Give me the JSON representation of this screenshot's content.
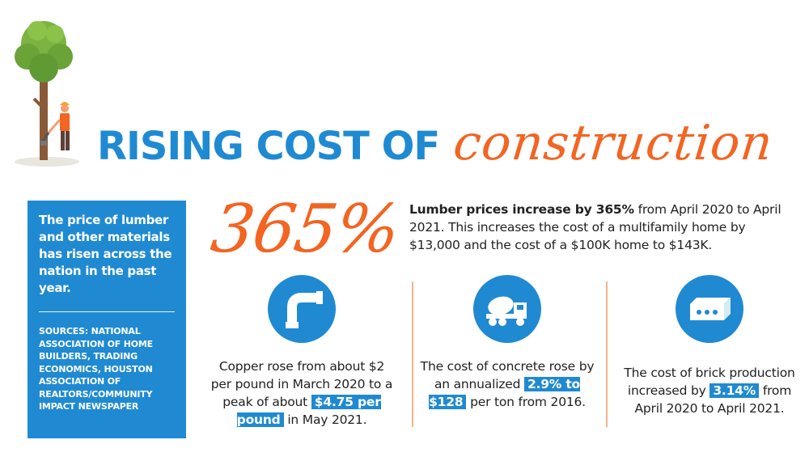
{
  "colors": {
    "accent_blue": "#1f8ad2",
    "accent_orange": "#f26522",
    "text": "#222222"
  },
  "title": {
    "main": "RISING COST OF",
    "script": "construction"
  },
  "sidebar": {
    "intro": "The price of lumber and other materials has risen across the nation in the past year.",
    "sources": "SOURCES: NATIONAL ASSOCIATION OF HOME BUILDERS, TRADING ECONOMICS, HOUSTON ASSOCIATION OF REALTORS/COMMUNITY IMPACT NEWSPAPER"
  },
  "headline": {
    "stat": "365%",
    "desc_bold": "Lumber prices increase by 365%",
    "desc_rest": " from April 2020 to April 2021. This increases the cost of a multifamily home by $13,000 and the cost of a $100K home to $143K."
  },
  "materials": {
    "copper": {
      "icon": "pipe-icon",
      "text_before": "Copper rose from about $2 per pound in March 2020 to a peak of about ",
      "highlight": "$4.75 per pound",
      "text_after": " in May 2021."
    },
    "concrete": {
      "icon": "cement-truck-icon",
      "text_before": "The cost of concrete rose by an annualized ",
      "highlight": "2.9% to $128",
      "text_after": " per ton from 2016."
    },
    "brick": {
      "icon": "brick-icon",
      "text_before": "The cost of brick production increased by ",
      "highlight": "3.14%",
      "text_after": " from April 2020 to April 2021."
    }
  }
}
